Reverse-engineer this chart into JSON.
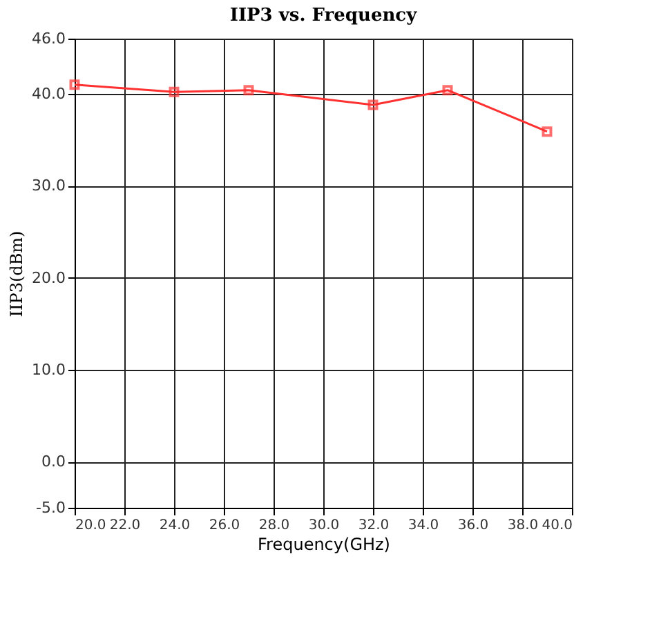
{
  "chart_data": {
    "type": "line",
    "title": "IIP3 vs. Frequency",
    "xlabel": "Frequency(GHz)",
    "ylabel": "IIP3(dBm)",
    "x": [
      20,
      24,
      27,
      32,
      35,
      39
    ],
    "series": [
      {
        "color": "#ff3030",
        "values": [
          41.0,
          40.2,
          40.4,
          38.8,
          40.4,
          35.9
        ]
      }
    ],
    "xlim": [
      20,
      40
    ],
    "ylim": [
      -5,
      46
    ],
    "xticks": [
      {
        "value": 20,
        "label": "20.0"
      },
      {
        "value": 22,
        "label": "22.0"
      },
      {
        "value": 24,
        "label": "24.0"
      },
      {
        "value": 26,
        "label": "26.0"
      },
      {
        "value": 28,
        "label": "28.0"
      },
      {
        "value": 30,
        "label": "30.0"
      },
      {
        "value": 32,
        "label": "32.0"
      },
      {
        "value": 34,
        "label": "34.0"
      },
      {
        "value": 36,
        "label": "36.0"
      },
      {
        "value": 38,
        "label": "38.0"
      },
      {
        "value": 40,
        "label": "40.0"
      }
    ],
    "yticks": [
      {
        "value": -5,
        "label": "-5.0"
      },
      {
        "value": 0,
        "label": "0.0"
      },
      {
        "value": 10,
        "label": "10.0"
      },
      {
        "value": 20,
        "label": "20.0"
      },
      {
        "value": 30,
        "label": "30.0"
      },
      {
        "value": 40,
        "label": "40.0"
      },
      {
        "value": 46,
        "label": "46.0"
      }
    ],
    "grid": true,
    "marker": "square",
    "line_style": "solid"
  }
}
